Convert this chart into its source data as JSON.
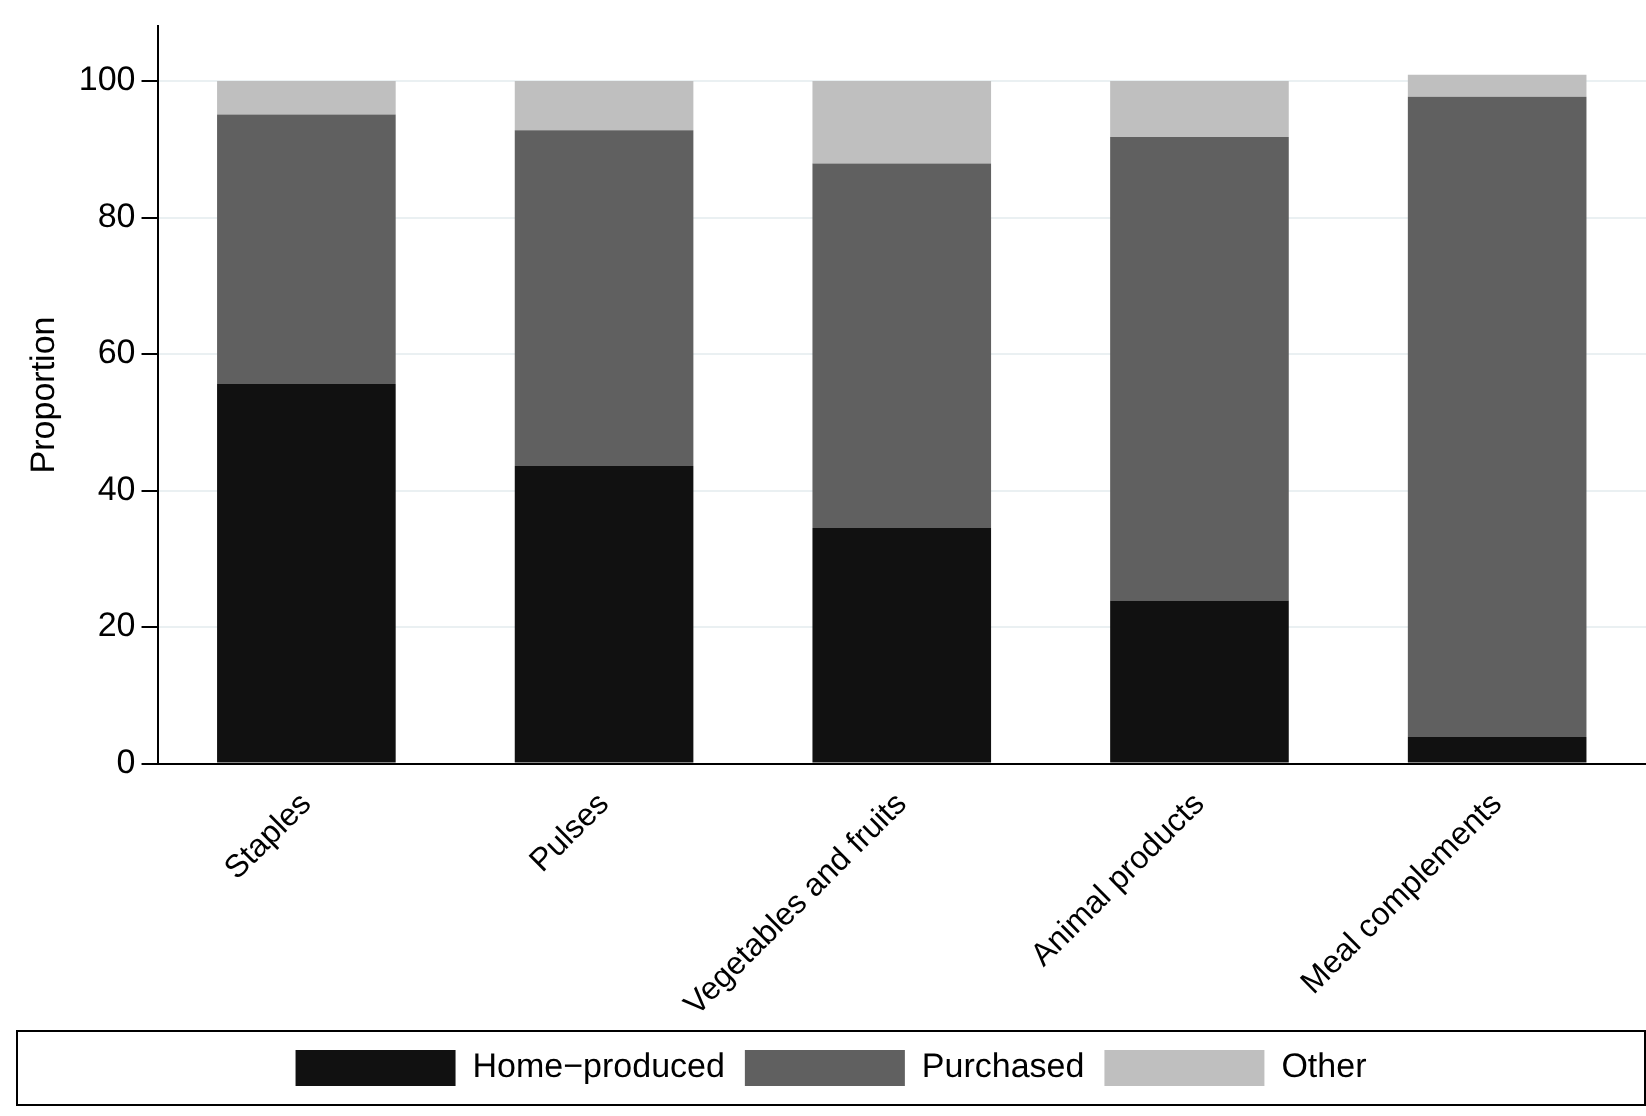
{
  "chart_data": {
    "type": "bar",
    "stacked": true,
    "ylabel": "Proportion",
    "categories": [
      "Staples",
      "Pulses",
      "Vegetables and fruits",
      "Animal products",
      "Meal complements"
    ],
    "series": [
      {
        "name": "Home−produced",
        "color": "#111111",
        "values": [
          55.6,
          43.6,
          34.5,
          23.9,
          3.9
        ]
      },
      {
        "name": "Purchased",
        "color": "#606060",
        "values": [
          39.5,
          49.2,
          53.4,
          67.9,
          93.8
        ]
      },
      {
        "name": "Other",
        "color": "#bfbfbf",
        "values": [
          4.9,
          7.2,
          12.1,
          8.2,
          3.2
        ]
      }
    ],
    "ylim": [
      0,
      108
    ],
    "yticks": [
      0,
      20,
      40,
      60,
      80,
      100
    ],
    "grid": "y",
    "legend": "bottom"
  }
}
